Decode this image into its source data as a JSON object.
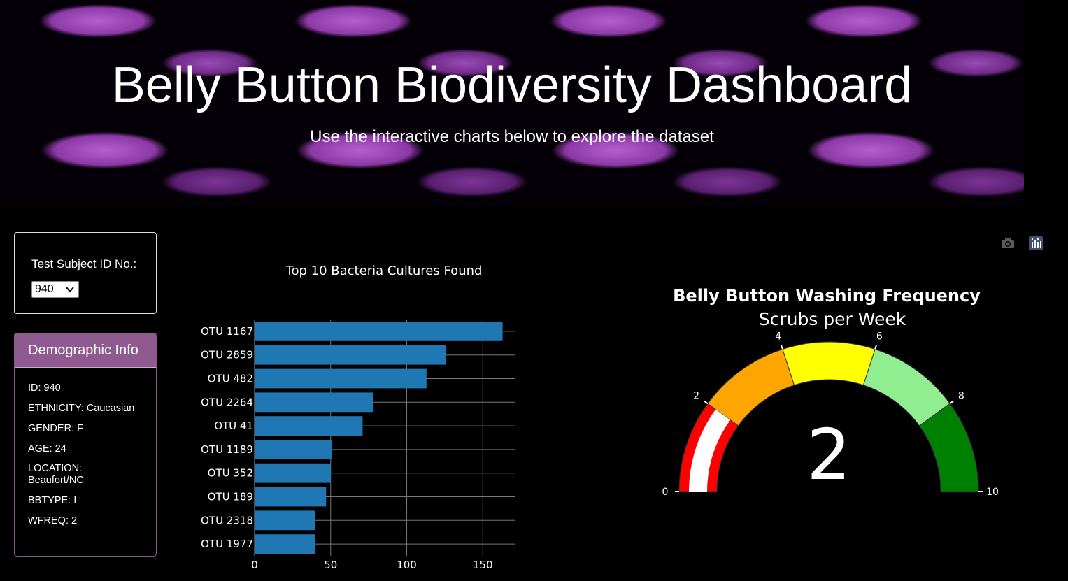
{
  "header": {
    "title": "Belly Button Biodiversity Dashboard",
    "subtitle": "Use the interactive charts below to explore the dataset"
  },
  "selector": {
    "label": "Test Subject ID No.:",
    "selected": "940"
  },
  "demographics": {
    "heading": "Demographic Info",
    "lines": [
      "ID: 940",
      "ETHNICITY: Caucasian",
      "GENDER: F",
      "AGE: 24",
      "LOCATION: Beaufort/NC",
      "BBTYPE: I",
      "WFREQ: 2"
    ]
  },
  "modebar": {
    "camera_icon": "camera-icon",
    "plotly_icon": "plotly-logo-icon"
  },
  "colors": {
    "bar": "#1f77b4",
    "panel_header": "#8e5a8f",
    "gauge_steps": [
      "#ff0000",
      "#ffa500",
      "#ffff00",
      "#90ee90",
      "#008000"
    ],
    "gauge_bar": "#ffffff"
  },
  "chart_data": [
    {
      "type": "bar",
      "orientation": "horizontal",
      "title": "Top 10 Bacteria Cultures Found",
      "categories": [
        "OTU 1167",
        "OTU 2859",
        "OTU 482",
        "OTU 2264",
        "OTU 41",
        "OTU 1189",
        "OTU 352",
        "OTU 189",
        "OTU 2318",
        "OTU 1977"
      ],
      "values": [
        163,
        126,
        113,
        78,
        71,
        51,
        50,
        47,
        40,
        40
      ],
      "xticks": [
        0,
        50,
        100,
        150
      ],
      "xlim": [
        0,
        171
      ],
      "grid": true
    },
    {
      "type": "gauge",
      "title": "Belly Button Washing Frequency",
      "subtitle": "Scrubs per Week",
      "value": 2,
      "range": [
        0,
        10
      ],
      "ticks": [
        0,
        2,
        4,
        6,
        8,
        10
      ],
      "steps": [
        {
          "range": [
            0,
            2
          ],
          "color": "#ff0000"
        },
        {
          "range": [
            2,
            4
          ],
          "color": "#ffa500"
        },
        {
          "range": [
            4,
            6
          ],
          "color": "#ffff00"
        },
        {
          "range": [
            6,
            8
          ],
          "color": "#90ee90"
        },
        {
          "range": [
            8,
            10
          ],
          "color": "#008000"
        }
      ]
    }
  ]
}
